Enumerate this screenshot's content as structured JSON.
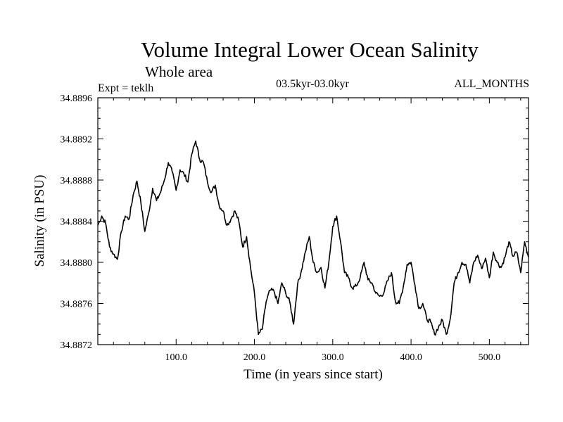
{
  "chart_data": {
    "type": "line",
    "title": "Volume Integral Lower Ocean Salinity",
    "subtitle": "Whole area",
    "left_annotation": "Expt = teklh",
    "center_annotation": "03.5kyr-03.0kyr",
    "right_annotation": "ALL_MONTHS",
    "xlabel": "Time (in years since start)",
    "ylabel": "Salinity (in PSU)",
    "xlim": [
      0,
      550
    ],
    "ylim": [
      34.8872,
      34.8896
    ],
    "xticks": [
      100,
      200,
      300,
      400,
      500
    ],
    "xtick_labels": [
      "100.0",
      "200.0",
      "300.0",
      "400.0",
      "500.0"
    ],
    "yticks": [
      34.8872,
      34.8876,
      34.888,
      34.8884,
      34.8888,
      34.8892,
      34.8896
    ],
    "ytick_labels": [
      "34.8872",
      "34.8876",
      "34.8880",
      "34.8884",
      "34.8888",
      "34.8892",
      "34.8896"
    ],
    "grid": false,
    "series": [
      {
        "name": "salinity",
        "x": [
          0,
          5,
          10,
          15,
          20,
          25,
          30,
          35,
          40,
          45,
          50,
          55,
          60,
          65,
          70,
          75,
          80,
          85,
          90,
          95,
          100,
          105,
          110,
          115,
          120,
          125,
          130,
          135,
          140,
          145,
          150,
          155,
          160,
          165,
          170,
          175,
          180,
          185,
          190,
          195,
          200,
          205,
          210,
          215,
          220,
          225,
          230,
          235,
          240,
          245,
          250,
          255,
          260,
          265,
          270,
          275,
          280,
          285,
          290,
          295,
          300,
          305,
          310,
          315,
          320,
          325,
          330,
          335,
          340,
          345,
          350,
          355,
          360,
          365,
          370,
          375,
          380,
          385,
          390,
          395,
          400,
          405,
          410,
          415,
          420,
          425,
          430,
          435,
          440,
          445,
          450,
          455,
          460,
          465,
          470,
          475,
          480,
          485,
          490,
          495,
          500,
          505,
          510,
          515,
          520,
          525,
          530,
          535,
          540,
          545,
          550
        ],
        "values": [
          34.88836,
          34.88845,
          34.88838,
          34.88815,
          34.88808,
          34.88803,
          34.8883,
          34.88845,
          34.88842,
          34.88865,
          34.88879,
          34.88858,
          34.8883,
          34.88848,
          34.88872,
          34.8886,
          34.88868,
          34.8888,
          34.88897,
          34.88888,
          34.8887,
          34.8889,
          34.88886,
          34.88878,
          34.88905,
          34.88918,
          34.889,
          34.88897,
          34.88878,
          34.88868,
          34.88875,
          34.88855,
          34.8885,
          34.88836,
          34.88842,
          34.8885,
          34.8884,
          34.88815,
          34.88825,
          34.88795,
          34.8877,
          34.8873,
          34.88735,
          34.88762,
          34.88773,
          34.88772,
          34.8876,
          34.8878,
          34.8877,
          34.88762,
          34.8874,
          34.88778,
          34.88792,
          34.8881,
          34.88825,
          34.888,
          34.8879,
          34.88795,
          34.88775,
          34.888,
          34.88835,
          34.88845,
          34.8882,
          34.8879,
          34.88785,
          34.88775,
          34.88777,
          34.88785,
          34.888,
          34.88783,
          34.8878,
          34.8877,
          34.88767,
          34.8877,
          34.88782,
          34.8879,
          34.88762,
          34.8876,
          34.88776,
          34.88798,
          34.888,
          34.88778,
          34.88755,
          34.8876,
          34.88745,
          34.88742,
          34.8873,
          34.88737,
          34.88744,
          34.8873,
          34.88745,
          34.8878,
          34.8879,
          34.888,
          34.88798,
          34.8878,
          34.888,
          34.88807,
          34.88794,
          34.88804,
          34.88785,
          34.8881,
          34.888,
          34.88795,
          34.88805,
          34.8882,
          34.88806,
          34.8881,
          34.8879,
          34.8882,
          34.88805
        ]
      }
    ]
  }
}
